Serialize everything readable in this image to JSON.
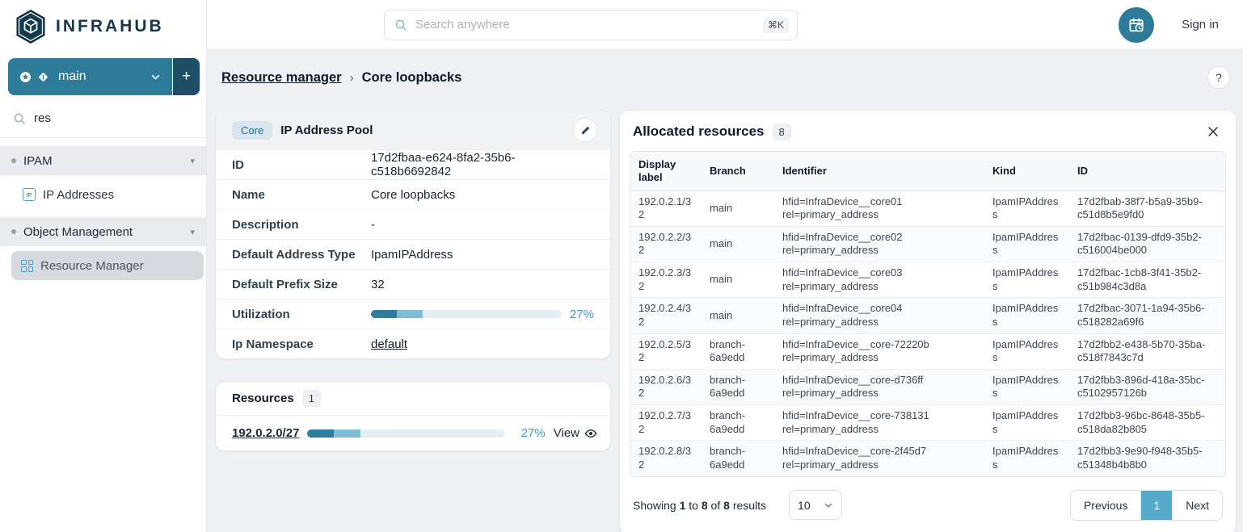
{
  "colors": {
    "accent_teal": "#2e7b99",
    "dark_navy": "#1d4e66",
    "icon_blue": "#4da3c7",
    "active_page_blue": "#55a9c9",
    "progress_dark": "#2e7f9e",
    "progress_light": "#7fbdd3",
    "percent_text": "#4298bf"
  },
  "brand": {
    "name": "INFRAHUB"
  },
  "header": {
    "search_placeholder": "Search anywhere",
    "search_shortcut": "⌘K",
    "sign_in": "Sign in"
  },
  "sidebar": {
    "branch_name": "main",
    "add_branch_label": "+",
    "filter_value": "res",
    "sections": [
      {
        "label": "IPAM",
        "items": [
          {
            "label": "IP Addresses",
            "icon_text": "IP"
          }
        ]
      },
      {
        "label": "Object Management",
        "items": [
          {
            "label": "Resource Manager"
          }
        ]
      }
    ]
  },
  "breadcrumb": {
    "parent": "Resource manager",
    "separator": "›",
    "current": "Core loopbacks",
    "help": "?"
  },
  "pool_card": {
    "badge": "Core",
    "title": "IP Address Pool",
    "fields": [
      {
        "label": "ID",
        "value": "17d2fbaa-e624-8fa2-35b6-c518b6692842"
      },
      {
        "label": "Name",
        "value": "Core loopbacks"
      },
      {
        "label": "Description",
        "value": "-"
      },
      {
        "label": "Default Address Type",
        "value": "IpamIPAddress"
      },
      {
        "label": "Default Prefix Size",
        "value": "32"
      },
      {
        "label": "Utilization"
      },
      {
        "label": "Ip Namespace",
        "value": "default"
      }
    ],
    "utilization": {
      "percent_label": "27%",
      "segment1": 13.5,
      "segment2": 13.5
    }
  },
  "resources_card": {
    "title": "Resources",
    "count": "1",
    "resource": {
      "prefix": "192.0.2.0/27",
      "percent_label": "27%",
      "segment1": 13.5,
      "segment2": 13.5,
      "view_label": "View"
    }
  },
  "allocated": {
    "title": "Allocated resources",
    "count": "8",
    "columns": [
      "Display label",
      "Branch",
      "Identifier",
      "Kind",
      "ID"
    ],
    "rows": [
      {
        "display_label": "192.0.2.1/32",
        "branch": "main",
        "identifier": "hfid=InfraDevice__core01\nrel=primary_address",
        "kind": "IpamIPAddress",
        "id": "17d2fbab-38f7-b5a9-35b9-c51d8b5e9fd0"
      },
      {
        "display_label": "192.0.2.2/32",
        "branch": "main",
        "identifier": "hfid=InfraDevice__core02\nrel=primary_address",
        "kind": "IpamIPAddress",
        "id": "17d2fbac-0139-dfd9-35b2-c516004be000"
      },
      {
        "display_label": "192.0.2.3/32",
        "branch": "main",
        "identifier": "hfid=InfraDevice__core03\nrel=primary_address",
        "kind": "IpamIPAddress",
        "id": "17d2fbac-1cb8-3f41-35b2-c51b984c3d8a"
      },
      {
        "display_label": "192.0.2.4/32",
        "branch": "main",
        "identifier": "hfid=InfraDevice__core04\nrel=primary_address",
        "kind": "IpamIPAddress",
        "id": "17d2fbac-3071-1a94-35b6-c518282a69f6"
      },
      {
        "display_label": "192.0.2.5/32",
        "branch": "branch-6a9edd",
        "identifier": "hfid=InfraDevice__core-72220b\nrel=primary_address",
        "kind": "IpamIPAddress",
        "id": "17d2fbb2-e438-5b70-35ba-c518f7843c7d"
      },
      {
        "display_label": "192.0.2.6/32",
        "branch": "branch-6a9edd",
        "identifier": "hfid=InfraDevice__core-d736ff\nrel=primary_address",
        "kind": "IpamIPAddress",
        "id": "17d2fbb3-896d-418a-35bc-c5102957126b"
      },
      {
        "display_label": "192.0.2.7/32",
        "branch": "branch-6a9edd",
        "identifier": "hfid=InfraDevice__core-738131\nrel=primary_address",
        "kind": "IpamIPAddress",
        "id": "17d2fbb3-96bc-8648-35b5-c518da82b805"
      },
      {
        "display_label": "192.0.2.8/32",
        "branch": "branch-6a9edd",
        "identifier": "hfid=InfraDevice__core-2f45d7\nrel=primary_address",
        "kind": "IpamIPAddress",
        "id": "17d2fbb3-9e90-f948-35b5-c51348b4b8b0"
      }
    ],
    "footer": {
      "showing_text": "Showing",
      "from_value": "1",
      "to_text": "to",
      "to_value": "8",
      "of_text": "of",
      "total_value": "8",
      "results_text": "results",
      "page_size": "10",
      "previous": "Previous",
      "page": "1",
      "next": "Next"
    }
  }
}
